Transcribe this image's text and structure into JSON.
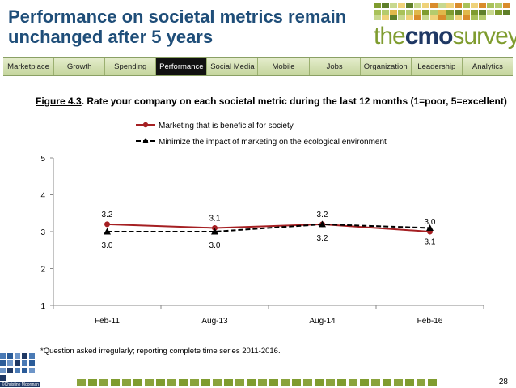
{
  "title": "Performance on societal metrics remain unchanged after 5 years",
  "logo": {
    "part1": "the",
    "part2": "cmo",
    "part3": "survey"
  },
  "nav": {
    "tabs": [
      {
        "label": "Marketplace",
        "active": false
      },
      {
        "label": "Growth",
        "active": false
      },
      {
        "label": "Spending",
        "active": false
      },
      {
        "label": "Performance",
        "active": true
      },
      {
        "label": "Social Media",
        "active": false
      },
      {
        "label": "Mobile",
        "active": false
      },
      {
        "label": "Jobs",
        "active": false
      },
      {
        "label": "Organization",
        "active": false
      },
      {
        "label": "Leadership",
        "active": false
      },
      {
        "label": "Analytics",
        "active": false
      }
    ]
  },
  "figure": {
    "number": "Figure 4.3",
    "caption": ".  Rate your company on each societal metric during the last 12 months (1=poor, 5=excellent)"
  },
  "chart_data": {
    "type": "line",
    "title": "",
    "categories": [
      "Feb-11",
      "Aug-13",
      "Aug-14",
      "Feb-16"
    ],
    "series": [
      {
        "name": "Marketing that is beneficial for society",
        "values": [
          3.2,
          3.1,
          3.2,
          3.0
        ],
        "labels": [
          "3.2",
          "3.1",
          "3.2",
          "3.0"
        ],
        "color": "#a51f22",
        "style": "solid",
        "marker": "circle"
      },
      {
        "name": "Minimize the impact of marketing on the ecological environment",
        "values": [
          3.0,
          3.0,
          3.2,
          3.1
        ],
        "labels": [
          "3.0",
          "3.0",
          "3.2",
          "3.1"
        ],
        "color": "#000000",
        "style": "dashed",
        "marker": "triangle"
      }
    ],
    "ylim": [
      1,
      5
    ],
    "yticks": [
      "1",
      "2",
      "3",
      "4",
      "5"
    ],
    "xlabel": "",
    "ylabel": "",
    "legend_position": "top"
  },
  "footnote": "*Question asked irregularly; reporting complete time series 2011-2016.",
  "side_logo_caption": "©Christine Moorman",
  "page_number": "28",
  "colors": {
    "title": "#1f4e79",
    "logo_green": "#7f9c2f",
    "logo_navy": "#1f3864",
    "series1": "#a51f22",
    "series2": "#000000"
  }
}
